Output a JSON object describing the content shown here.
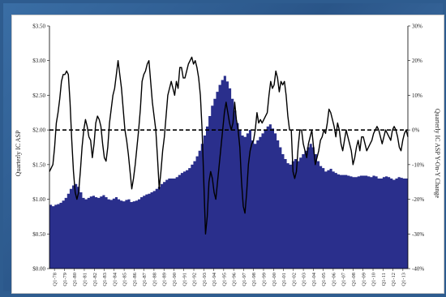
{
  "chart_data": {
    "type": "area",
    "title": "",
    "ylabel": "Quarterly IC ASP",
    "y2label": "Quarterly IC ASP Y-On-Y Change",
    "ylim": [
      0,
      3.5
    ],
    "y2lim": [
      -40,
      30
    ],
    "y_ticks": [
      "$0.00",
      "$0.50",
      "$1.00",
      "$1.50",
      "$2.00",
      "$2.50",
      "$3.00",
      "$3.50"
    ],
    "y2_ticks": [
      "-40%",
      "-30%",
      "-20%",
      "-10%",
      "0%",
      "10%",
      "20%",
      "30%"
    ],
    "x_ticks": [
      "Q1-78",
      "Q1-79",
      "Q1-80",
      "Q1-81",
      "Q1-82",
      "Q1-83",
      "Q1-84",
      "Q1-85",
      "Q1-86",
      "Q1-87",
      "Q1-88",
      "Q1-89",
      "Q1-90",
      "Q1-91",
      "Q1-92",
      "Q1-93",
      "Q1-94",
      "Q1-95",
      "Q1-96",
      "Q1-97",
      "Q1-98",
      "Q1-99",
      "Q1-00",
      "Q1-01",
      "Q1-02",
      "Q1-03",
      "Q1-04",
      "Q1-05",
      "Q1-06",
      "Q1-07",
      "Q1-08",
      "Q1-09",
      "Q1-10",
      "Q1-11",
      "Q1-12",
      "Q1-13"
    ],
    "series": [
      {
        "name": "",
        "axis": "left",
        "style": "area",
        "color": "#2a2f8c",
        "values": [
          0.92,
          0.9,
          0.92,
          0.93,
          0.95,
          0.98,
          1.02,
          1.08,
          1.15,
          1.2,
          1.22,
          1.18,
          1.1,
          1.02,
          1.0,
          1.02,
          1.04,
          1.05,
          1.03,
          1.02,
          1.04,
          1.06,
          1.03,
          1.0,
          0.99,
          1.01,
          1.03,
          1.0,
          0.98,
          0.97,
          0.99,
          1.0,
          0.96,
          0.97,
          0.98,
          1.0,
          1.03,
          1.05,
          1.07,
          1.08,
          1.1,
          1.12,
          1.15,
          1.18,
          1.22,
          1.25,
          1.28,
          1.3,
          1.3,
          1.3,
          1.32,
          1.35,
          1.38,
          1.4,
          1.42,
          1.45,
          1.5,
          1.55,
          1.62,
          1.7,
          1.8,
          1.92,
          2.05,
          2.2,
          2.35,
          2.45,
          2.55,
          2.65,
          2.72,
          2.78,
          2.7,
          2.6,
          2.45,
          2.28,
          2.1,
          2.0,
          1.92,
          1.9,
          1.95,
          2.0,
          1.85,
          1.8,
          1.85,
          1.9,
          1.95,
          2.0,
          2.05,
          2.08,
          2.02,
          1.95,
          1.85,
          1.75,
          1.65,
          1.58,
          1.52,
          1.5,
          1.55,
          1.58,
          1.55,
          1.6,
          1.65,
          1.7,
          1.75,
          1.8,
          1.75,
          1.65,
          1.55,
          1.48,
          1.45,
          1.4,
          1.42,
          1.44,
          1.4,
          1.38,
          1.36,
          1.35,
          1.35,
          1.35,
          1.34,
          1.33,
          1.32,
          1.32,
          1.33,
          1.34,
          1.34,
          1.34,
          1.33,
          1.32,
          1.34,
          1.33,
          1.3,
          1.3,
          1.32,
          1.33,
          1.32,
          1.3,
          1.28,
          1.3,
          1.32,
          1.31,
          1.3,
          1.3
        ]
      },
      {
        "name": "",
        "axis": "right",
        "style": "line",
        "color": "#000000",
        "values": [
          -12,
          -11,
          -10,
          -5,
          2,
          5,
          9,
          14,
          16,
          16,
          17,
          16,
          8,
          -3,
          -12,
          -18,
          -20,
          -18,
          -12,
          -5,
          0,
          3,
          1,
          -2,
          -3,
          -8,
          -4,
          2,
          4,
          3,
          1,
          -4,
          -8,
          -9,
          -5,
          2,
          6,
          10,
          12,
          16,
          20,
          16,
          12,
          6,
          0,
          -3,
          -7,
          -12,
          -17,
          -14,
          -10,
          -5,
          0,
          6,
          14,
          16,
          17,
          19,
          20,
          14,
          8,
          4,
          0,
          -8,
          -17,
          -12,
          -6,
          -2,
          4,
          10,
          12,
          14,
          12,
          10,
          14,
          12,
          18,
          18,
          15,
          15,
          17,
          19,
          20,
          21,
          19,
          20,
          18,
          15,
          10,
          0,
          -15,
          -30,
          -25,
          -15,
          -12,
          -14,
          -18,
          -20,
          -15,
          -10,
          -5,
          0,
          5,
          8,
          5,
          2,
          0,
          2,
          8,
          3,
          0,
          -5,
          -15,
          -22,
          -24,
          -18,
          -10,
          -6,
          -4,
          -3,
          0,
          5,
          2,
          3,
          2,
          3,
          4,
          5,
          10,
          14,
          12,
          13,
          17,
          15,
          11,
          14,
          13,
          14,
          10,
          4,
          0,
          0,
          -12,
          -14,
          -12,
          -5,
          0,
          0,
          -4,
          -6,
          -8,
          -4,
          -2,
          0,
          -5,
          -10,
          -8,
          -6,
          -3,
          -2,
          0,
          -1,
          2,
          6,
          5,
          3,
          1,
          -2,
          2,
          0,
          -4,
          -6,
          -3,
          0,
          -2,
          -4,
          -6,
          -10,
          -8,
          -5,
          -3,
          -6,
          -2,
          -2,
          -4,
          -6,
          -5,
          -4,
          -3,
          -1,
          0,
          1,
          0,
          -2,
          -4,
          -2,
          0,
          -1,
          -2,
          -3,
          0,
          1,
          0,
          -2,
          -5,
          -6,
          -3,
          -1,
          0,
          -2
        ]
      }
    ],
    "reference_line": {
      "axis": "right",
      "value": 0,
      "style": "dashed"
    },
    "grid": false,
    "legend": "none"
  }
}
